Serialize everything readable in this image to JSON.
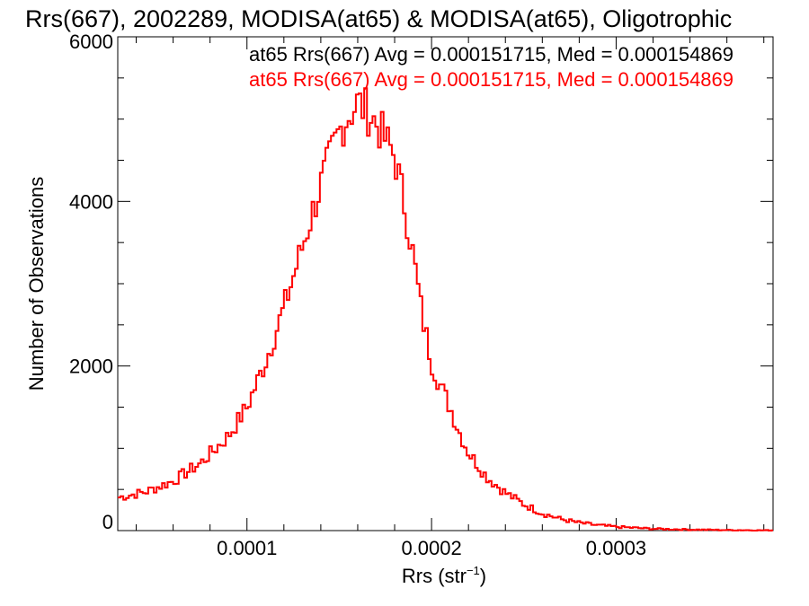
{
  "chart_data": {
    "type": "histogram",
    "title": "Rrs(667), 2002289, MODISA(at65) & MODISA(at65), Oligotrophic",
    "xlabel": "Rrs (str",
    "xlabel_sup": "−1",
    "xlabel_end": ")",
    "ylabel": "Number of Observations",
    "xlim": [
      3e-05,
      0.000385
    ],
    "ylim": [
      0,
      6000
    ],
    "x_ticks": [
      {
        "value": 0.0001,
        "label": "0.0001"
      },
      {
        "value": 0.0002,
        "label": "0.0002"
      },
      {
        "value": 0.0003,
        "label": "0.0003"
      }
    ],
    "y_ticks": [
      {
        "value": 0,
        "label": "0"
      },
      {
        "value": 2000,
        "label": "2000"
      },
      {
        "value": 4000,
        "label": "4000"
      },
      {
        "value": 6000,
        "label": "6000"
      }
    ],
    "annotations": [
      {
        "text": "at65 Rrs(667) Avg = 0.000151715, Med = 0.000154869",
        "color": "#000000"
      },
      {
        "text": "at65 Rrs(667) Avg = 0.000151715, Med = 0.000154869",
        "color": "#ff0000"
      }
    ],
    "series": [
      {
        "color": "#ff0000",
        "points": [
          [
            3e-05,
            400
          ],
          [
            4.5e-05,
            470
          ],
          [
            6e-05,
            600
          ],
          [
            7.5e-05,
            820
          ],
          [
            9e-05,
            1150
          ],
          [
            0.0001,
            1500
          ],
          [
            0.00011,
            2050
          ],
          [
            0.00012,
            2700
          ],
          [
            0.00013,
            3450
          ],
          [
            0.00014,
            4200
          ],
          [
            0.00015,
            4850
          ],
          [
            0.000155,
            5050
          ],
          [
            0.00016,
            5200
          ],
          [
            0.000165,
            5100
          ],
          [
            0.00017,
            4950
          ],
          [
            0.000175,
            4750
          ],
          [
            0.00018,
            4550
          ],
          [
            0.000185,
            4000
          ],
          [
            0.00019,
            3350
          ],
          [
            0.000195,
            2600
          ],
          [
            0.0002,
            2050
          ],
          [
            0.000205,
            1750
          ],
          [
            0.00021,
            1500
          ],
          [
            0.000215,
            1200
          ],
          [
            0.00022,
            950
          ],
          [
            0.00023,
            650
          ],
          [
            0.00024,
            460
          ],
          [
            0.00025,
            320
          ],
          [
            0.00026,
            210
          ],
          [
            0.00027,
            140
          ],
          [
            0.00028,
            95
          ],
          [
            0.00029,
            65
          ],
          [
            0.0003,
            45
          ],
          [
            0.00032,
            22
          ],
          [
            0.00034,
            12
          ],
          [
            0.00036,
            6
          ],
          [
            0.000385,
            3
          ]
        ]
      }
    ]
  }
}
